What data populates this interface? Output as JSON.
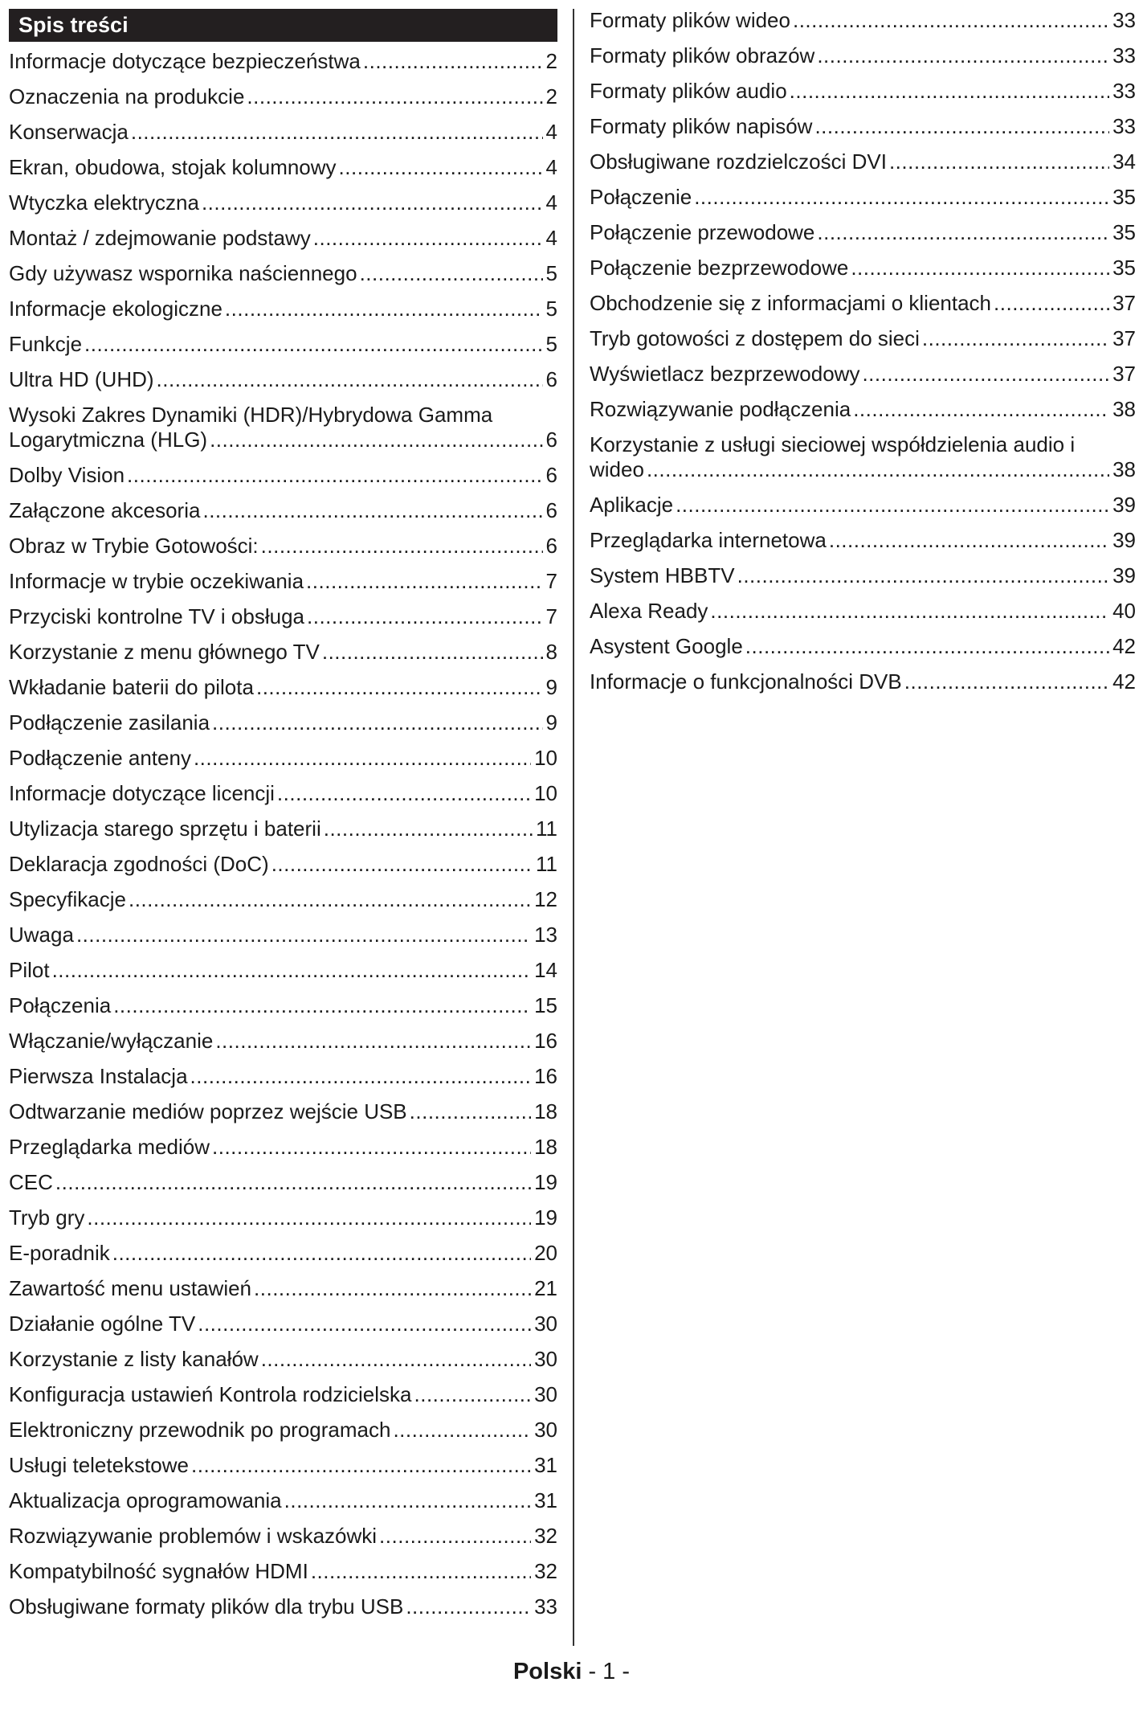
{
  "header": {
    "title": "Spis treści"
  },
  "left": [
    {
      "title": "Informacje dotyczące bezpieczeństwa",
      "page": "2"
    },
    {
      "title": "Oznaczenia na produkcie",
      "page": "2"
    },
    {
      "title": "Konserwacja",
      "page": "4"
    },
    {
      "title": "Ekran, obudowa, stojak kolumnowy",
      "page": "4"
    },
    {
      "title": "Wtyczka elektryczna",
      "page": "4"
    },
    {
      "title": "Montaż / zdejmowanie podstawy",
      "page": "4"
    },
    {
      "title": "Gdy używasz wspornika naściennego",
      "page": "5"
    },
    {
      "title": "Informacje ekologiczne",
      "page": "5"
    },
    {
      "title": "Funkcje",
      "page": "5"
    },
    {
      "title": "Ultra HD (UHD)",
      "page": "6"
    },
    {
      "title": "Wysoki Zakres Dynamiki (HDR)/Hybrydowa Gamma Logarytmiczna (HLG)",
      "page": "6"
    },
    {
      "title": "Dolby Vision",
      "page": "6"
    },
    {
      "title": "Załączone akcesoria",
      "page": "6"
    },
    {
      "title": "Obraz w Trybie Gotowości:",
      "page": "6"
    },
    {
      "title": "Informacje w trybie oczekiwania",
      "page": "7"
    },
    {
      "title": "Przyciski kontrolne TV i obsługa",
      "page": "7"
    },
    {
      "title": "Korzystanie z menu głównego TV",
      "page": "8"
    },
    {
      "title": "Wkładanie baterii do pilota",
      "page": "9"
    },
    {
      "title": "Podłączenie zasilania",
      "page": "9"
    },
    {
      "title": "Podłączenie anteny",
      "page": "10"
    },
    {
      "title": "Informacje dotyczące licencji",
      "page": "10"
    },
    {
      "title": "Utylizacja starego sprzętu i baterii",
      "page": "11"
    },
    {
      "title": "Deklaracja zgodności (DoC)",
      "page": "11"
    },
    {
      "title": "Specyfikacje",
      "page": "12"
    },
    {
      "title": "Uwaga",
      "page": "13"
    },
    {
      "title": "Pilot",
      "page": "14"
    },
    {
      "title": "Połączenia",
      "page": "15"
    },
    {
      "title": "Włączanie/wyłączanie",
      "page": "16"
    },
    {
      "title": "Pierwsza Instalacja",
      "page": "16"
    },
    {
      "title": "Odtwarzanie mediów poprzez wejście USB",
      "page": "18"
    },
    {
      "title": "Przeglądarka mediów",
      "page": "18"
    },
    {
      "title": "CEC",
      "page": "19"
    },
    {
      "title": "Tryb gry",
      "page": "19"
    },
    {
      "title": "E-poradnik",
      "page": "20"
    },
    {
      "title": "Zawartość menu ustawień",
      "page": "21"
    },
    {
      "title": "Działanie ogólne TV",
      "page": "30"
    },
    {
      "title": "Korzystanie z listy kanałów",
      "page": "30"
    },
    {
      "title": "Konfiguracja ustawień Kontrola rodzicielska",
      "page": "30"
    },
    {
      "title": "Elektroniczny przewodnik po programach",
      "page": "30"
    },
    {
      "title": "Usługi teletekstowe",
      "page": "31"
    },
    {
      "title": "Aktualizacja oprogramowania",
      "page": "31"
    },
    {
      "title": "Rozwiązywanie problemów i wskazówki",
      "page": "32"
    },
    {
      "title": "Kompatybilność sygnałów HDMI",
      "page": "32"
    },
    {
      "title": "Obsługiwane formaty plików dla trybu USB",
      "page": "33"
    }
  ],
  "right": [
    {
      "title": "Formaty plików wideo",
      "page": "33"
    },
    {
      "title": "Formaty plików obrazów",
      "page": "33"
    },
    {
      "title": "Formaty plików audio",
      "page": "33"
    },
    {
      "title": "Formaty plików napisów",
      "page": "33"
    },
    {
      "title": "Obsługiwane rozdzielczości DVI",
      "page": "34"
    },
    {
      "title": "Połączenie",
      "page": "35"
    },
    {
      "title": "Połączenie przewodowe",
      "page": "35"
    },
    {
      "title": "Połączenie bezprzewodowe",
      "page": "35"
    },
    {
      "title": "Obchodzenie się z informacjami o klientach",
      "page": "37"
    },
    {
      "title": "Tryb gotowości z dostępem do sieci",
      "page": "37"
    },
    {
      "title": "Wyświetlacz bezprzewodowy",
      "page": "37"
    },
    {
      "title": "Rozwiązywanie podłączenia",
      "page": "38"
    },
    {
      "title": "Korzystanie z usługi sieciowej współdzielenia audio i wideo",
      "page": "38"
    },
    {
      "title": "Aplikacje",
      "page": "39"
    },
    {
      "title": "Przeglądarka internetowa",
      "page": "39"
    },
    {
      "title": "System HBBTV",
      "page": "39"
    },
    {
      "title": "Alexa Ready",
      "page": "40"
    },
    {
      "title": "Asystent Google",
      "page": "42"
    },
    {
      "title": "Informacje o funkcjonalności DVB",
      "page": "42"
    }
  ],
  "footer": {
    "language": "Polski",
    "page": "- 1 -"
  }
}
